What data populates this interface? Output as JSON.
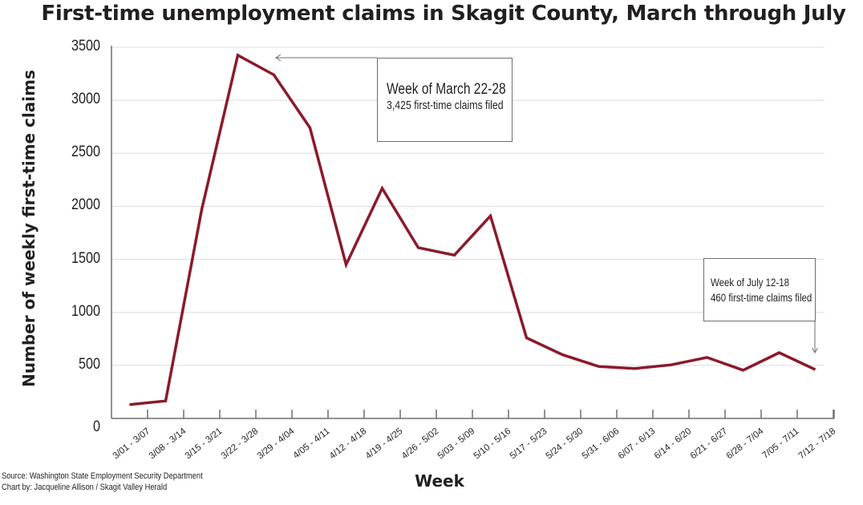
{
  "chart_data": {
    "type": "line",
    "title": "First-time unemployment claims in Skagit County, March through July",
    "xlabel": "Week",
    "ylabel": "Number of weekly first-time claims",
    "ylim": [
      0,
      3500
    ],
    "yticks": [
      "0",
      "500",
      "1000",
      "1500",
      "2000",
      "2500",
      "3000",
      "3500"
    ],
    "grid": true,
    "legend": null,
    "line_color": "#8b1a2b",
    "categories": [
      "3/01 - 3/07",
      "3/08 - 3/14",
      "3/15 - 3/21",
      "3/22 - 3/28",
      "3/29 - 4/04",
      "4/05 - 4/11",
      "4/12 - 4/18",
      "4/19 - 4/25",
      "4/26 - 5/02",
      "5/03 - 5/09",
      "5/10 - 5/16",
      "5/17 - 5/23",
      "5/24 - 5/30",
      "5/31 - 6/06",
      "6/07 - 6/13",
      "6/14 - 6/20",
      "6/21 - 6/27",
      "6/28 - 7/04",
      "7/05 - 7/11",
      "7/12 - 7/18"
    ],
    "series": [
      {
        "name": "First-time claims",
        "values": [
          130,
          165,
          1970,
          3425,
          3240,
          2740,
          1450,
          2170,
          1610,
          1540,
          1910,
          760,
          600,
          490,
          470,
          505,
          575,
          455,
          620,
          460
        ]
      }
    ],
    "annotations": [
      {
        "title": "Week of March 22-28",
        "text": "3,425 first-time claims filed",
        "points_to": "3/22 - 3/28"
      },
      {
        "title": "Week of July 12-18",
        "text": "460 first-time claims filed",
        "points_to": "7/12 - 7/18"
      }
    ],
    "source": "Source: Washington State Employment Security Department",
    "credit": "Chart by: Jacqueline Allison / Skagit Valley Herald"
  }
}
